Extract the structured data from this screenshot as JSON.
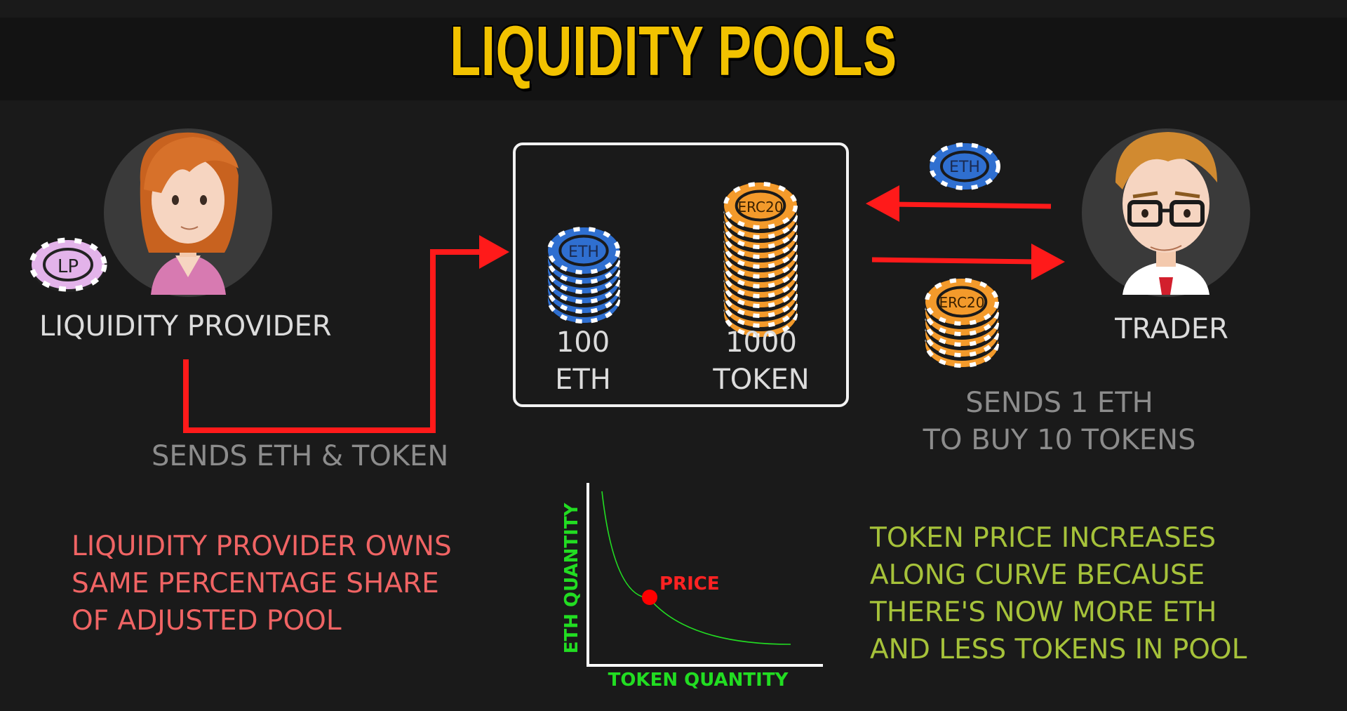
{
  "title": "LIQUIDITY POOLS",
  "provider": {
    "label": "LIQUIDITY PROVIDER",
    "badge": "LP",
    "action": "SENDS ETH & TOKEN"
  },
  "pool": {
    "eth_chip": "ETH",
    "token_chip": "ERC20",
    "eth_amount": "100",
    "eth_unit": "ETH",
    "token_amount": "1000",
    "token_unit": "TOKEN"
  },
  "trader": {
    "label": "TRADER",
    "eth_chip": "ETH",
    "token_chip": "ERC20",
    "action_line1": "SENDS 1 ETH",
    "action_line2": "TO BUY 10 TOKENS"
  },
  "notes": {
    "left": [
      "LIQUIDITY PROVIDER OWNS",
      "SAME PERCENTAGE SHARE",
      "OF ADJUSTED  POOL"
    ],
    "right": [
      "TOKEN PRICE INCREASES",
      "ALONG CURVE BECAUSE",
      "THERE'S NOW MORE ETH",
      "AND LESS TOKENS IN POOL"
    ]
  },
  "curve": {
    "ylabel": "ETH QUANTITY",
    "xlabel": "TOKEN QUANTITY",
    "point_label": "PRICE"
  },
  "colors": {
    "title": "#f2c200",
    "arrow": "#ff1a1a",
    "eth_chip": "#2f6fd0",
    "token_chip": "#f39a2b",
    "lp_chip": "#e3b3ea",
    "note_left": "#f06464",
    "note_right": "#a6c23a",
    "curve": "#22dd22"
  }
}
